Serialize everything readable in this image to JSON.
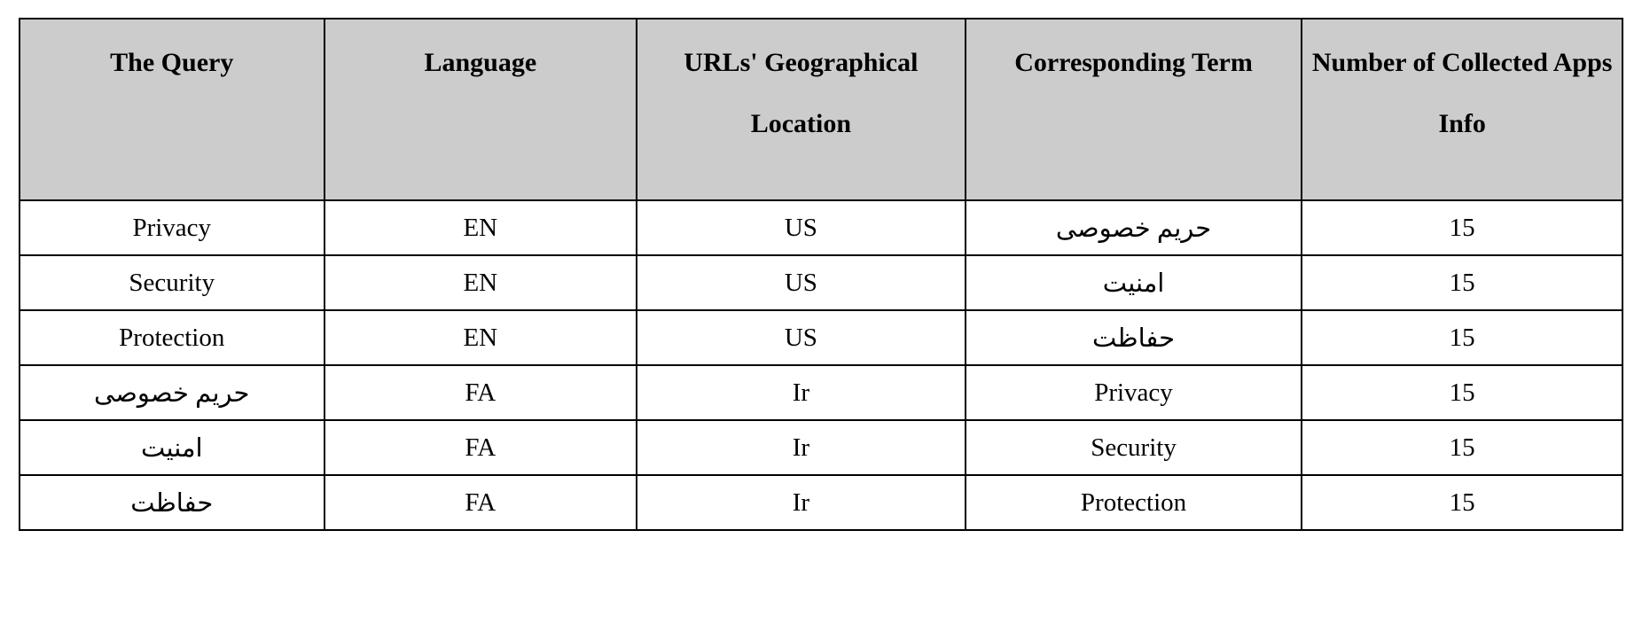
{
  "table": {
    "type": "table",
    "header_bg_color": "#cccccc",
    "body_bg_color": "#ffffff",
    "border_color": "#000000",
    "border_width": 2,
    "font_family": "Times New Roman",
    "header_font_size": 30,
    "body_font_size": 29,
    "header_font_weight": "bold",
    "text_align": "center",
    "columns": [
      {
        "label": "The Query",
        "width_pct": 19
      },
      {
        "label": "Language",
        "width_pct": 19.5
      },
      {
        "label": "URLs' Geographical Location",
        "width_pct": 20.5
      },
      {
        "label": "Corresponding Term",
        "width_pct": 21
      },
      {
        "label": "Number of Collected Apps Info",
        "width_pct": 20
      }
    ],
    "rows": [
      {
        "query": "Privacy",
        "language": "EN",
        "location": "US",
        "term": "حریم خصوصی",
        "count": "15"
      },
      {
        "query": "Security",
        "language": "EN",
        "location": "US",
        "term": "امنیت",
        "count": "15"
      },
      {
        "query": "Protection",
        "language": "EN",
        "location": "US",
        "term": "حفاظت",
        "count": "15"
      },
      {
        "query": "حریم خصوصی",
        "language": "FA",
        "location": "Ir",
        "term": "Privacy",
        "count": "15"
      },
      {
        "query": "امنیت",
        "language": "FA",
        "location": "Ir",
        "term": "Security",
        "count": "15"
      },
      {
        "query": "حفاظت",
        "language": "FA",
        "location": "Ir",
        "term": "Protection",
        "count": "15"
      }
    ]
  }
}
